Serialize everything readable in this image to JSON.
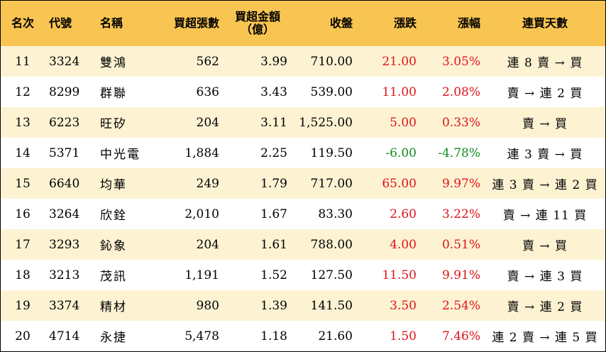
{
  "headers": {
    "rank": "名次",
    "code": "代號",
    "name": "名稱",
    "net_buy_lots": "買超張數",
    "net_buy_amount_line1": "買超金額",
    "net_buy_amount_line2": "（億）",
    "close": "收盤",
    "change": "漲跌",
    "change_pct": "漲幅",
    "consecutive_days": "連買天數"
  },
  "colors": {
    "header_bg": "#f9c552",
    "stripe_bg": "#fdf3d3",
    "up": "#e0121a",
    "down": "#138a20"
  },
  "rows": [
    {
      "rank": "11",
      "code": "3324",
      "name": "雙鴻",
      "lots": "562",
      "amount": "3.99",
      "close": "710.00",
      "change": "21.00",
      "pct": "3.05%",
      "trend": "up",
      "streak": "連 8 賣 → 買"
    },
    {
      "rank": "12",
      "code": "8299",
      "name": "群聯",
      "lots": "636",
      "amount": "3.43",
      "close": "539.00",
      "change": "11.00",
      "pct": "2.08%",
      "trend": "up",
      "streak": "賣 → 連 2 買"
    },
    {
      "rank": "13",
      "code": "6223",
      "name": "旺矽",
      "lots": "204",
      "amount": "3.11",
      "close": "1,525.00",
      "change": "5.00",
      "pct": "0.33%",
      "trend": "up",
      "streak": "賣 → 買"
    },
    {
      "rank": "14",
      "code": "5371",
      "name": "中光電",
      "lots": "1,884",
      "amount": "2.25",
      "close": "119.50",
      "change": "-6.00",
      "pct": "-4.78%",
      "trend": "down",
      "streak": "連 3 賣 → 買"
    },
    {
      "rank": "15",
      "code": "6640",
      "name": "均華",
      "lots": "249",
      "amount": "1.79",
      "close": "717.00",
      "change": "65.00",
      "pct": "9.97%",
      "trend": "up",
      "streak": "連 3 賣 → 連 2 買"
    },
    {
      "rank": "16",
      "code": "3264",
      "name": "欣銓",
      "lots": "2,010",
      "amount": "1.67",
      "close": "83.30",
      "change": "2.60",
      "pct": "3.22%",
      "trend": "up",
      "streak": "賣 → 連 11 買"
    },
    {
      "rank": "17",
      "code": "3293",
      "name": "鈊象",
      "lots": "204",
      "amount": "1.61",
      "close": "788.00",
      "change": "4.00",
      "pct": "0.51%",
      "trend": "up",
      "streak": "賣 → 買"
    },
    {
      "rank": "18",
      "code": "3213",
      "name": "茂訊",
      "lots": "1,191",
      "amount": "1.52",
      "close": "127.50",
      "change": "11.50",
      "pct": "9.91%",
      "trend": "up",
      "streak": "賣 → 連 3 買"
    },
    {
      "rank": "19",
      "code": "3374",
      "name": "精材",
      "lots": "980",
      "amount": "1.39",
      "close": "141.50",
      "change": "3.50",
      "pct": "2.54%",
      "trend": "up",
      "streak": "賣 → 連 2 買"
    },
    {
      "rank": "20",
      "code": "4714",
      "name": "永捷",
      "lots": "5,478",
      "amount": "1.18",
      "close": "21.60",
      "change": "1.50",
      "pct": "7.46%",
      "trend": "up",
      "streak": "連 2 賣 → 連 5 買"
    }
  ]
}
